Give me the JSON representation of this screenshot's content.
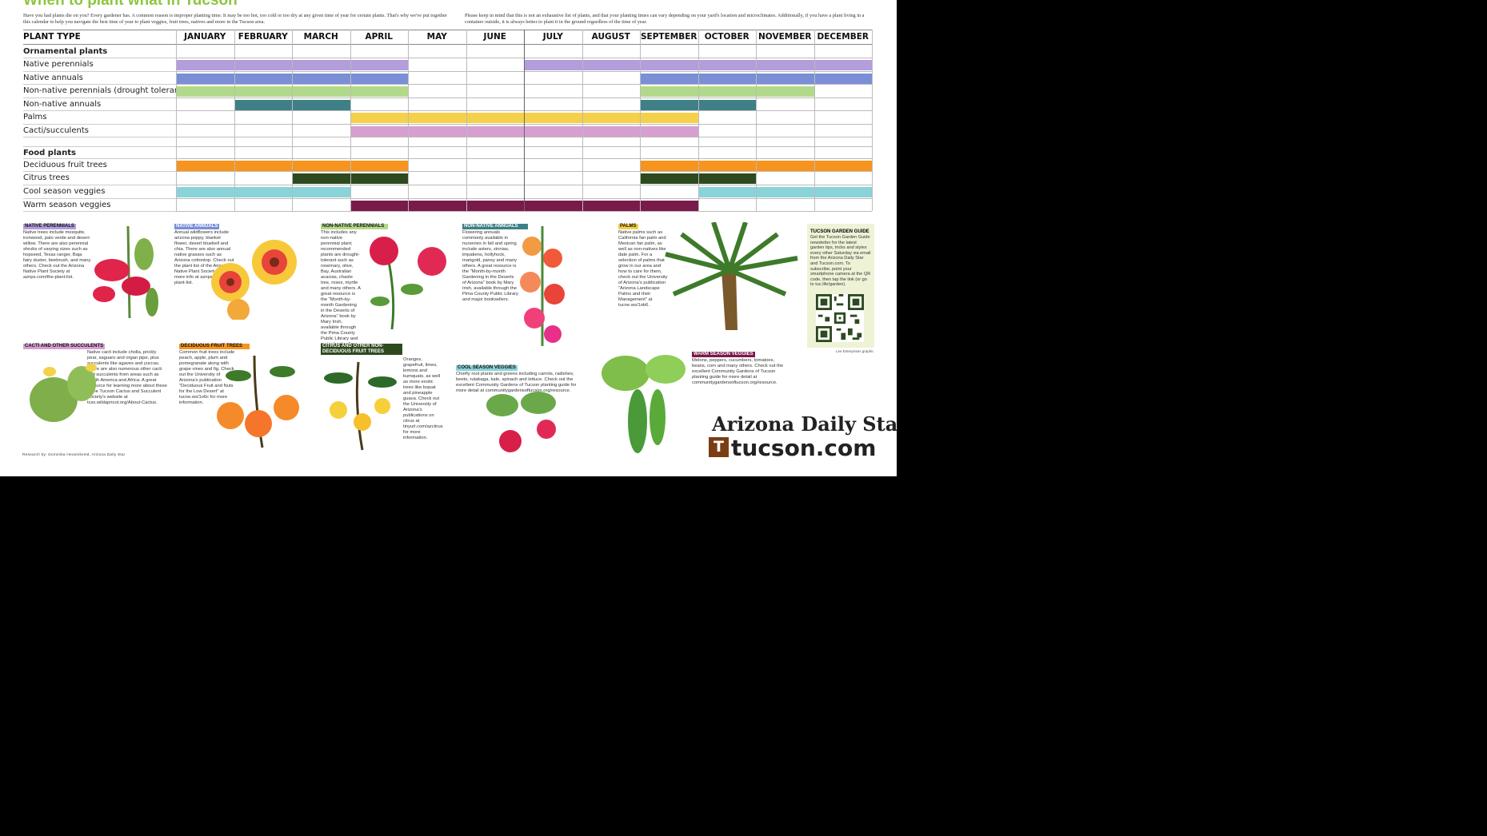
{
  "title": "When to plant what in Tucson",
  "intro_left": "Have you had plants die on you? Every gardener has. A common reason is improper planting time. It may be too hot, too cold or too dry at any given time of year for certain plants. That's why we've put together this calendar to help you navigate the best time of year to plant veggies, fruit trees, natives and more in the Tucson area.",
  "intro_right": "Please keep in mind that this is not an exhaustive list of plants, and that your planting times can vary depending on your yard's location and microclimates. Additionally, if you have a plant living in a container outside, it is always better to plant it in the ground regardless of the time of year.",
  "calendar": {
    "plant_type_header": "PLANT TYPE",
    "months": [
      "JANUARY",
      "FEBRUARY",
      "MARCH",
      "APRIL",
      "MAY",
      "JUNE",
      "JULY",
      "AUGUST",
      "SEPTEMBER",
      "OCTOBER",
      "NOVEMBER",
      "DECEMBER"
    ],
    "rows": [
      {
        "label": "Ornamental plants",
        "section": true,
        "periods": []
      },
      {
        "label": "Native perennials",
        "color": "#b39ddb",
        "periods": [
          [
            0,
            4
          ],
          [
            6,
            12
          ]
        ]
      },
      {
        "label": "Native annuals",
        "color": "#7b8fd6",
        "periods": [
          [
            0,
            4
          ],
          [
            8,
            12
          ]
        ]
      },
      {
        "label": "Non-native perennials (drought tolerant)",
        "color": "#b2d98a",
        "periods": [
          [
            0,
            4
          ],
          [
            8,
            11
          ]
        ]
      },
      {
        "label": "Non-native annuals",
        "color": "#3f7f86",
        "periods": [
          [
            1,
            3
          ],
          [
            8,
            10
          ]
        ]
      },
      {
        "label": "Palms",
        "color": "#f5d04a",
        "periods": [
          [
            3,
            9
          ]
        ]
      },
      {
        "label": "Cacti/succulents",
        "color": "#d69fcf",
        "periods": [
          [
            3,
            9
          ]
        ]
      },
      {
        "label": "",
        "spacer": true,
        "periods": []
      },
      {
        "label": "Food plants",
        "section": true,
        "periods": []
      },
      {
        "label": "Deciduous fruit trees",
        "color": "#f7941d",
        "periods": [
          [
            0,
            4
          ],
          [
            8,
            12
          ]
        ]
      },
      {
        "label": "Citrus trees",
        "color": "#2d4a1f",
        "periods": [
          [
            2,
            4
          ],
          [
            8,
            10
          ]
        ]
      },
      {
        "label": "Cool season veggies",
        "color": "#8ad3d8",
        "periods": [
          [
            0,
            3
          ],
          [
            9,
            12
          ]
        ]
      },
      {
        "label": "Warm season veggies",
        "color": "#7a1a4a",
        "periods": [
          [
            3,
            9
          ]
        ]
      }
    ]
  },
  "cards": {
    "native_perennials": {
      "tag": "NATIVE PERENNIALS",
      "color": "#b39ddb",
      "text": "Native trees include mesquite, ironwood, palo verde and desert willow. There are also perennial shrubs of varying sizes such as hopseed, Texas ranger, Baja fairy duster, beebrush, and many others. Check out the Arizona Native Plant Society at aznps.com/the-plant-list."
    },
    "native_annuals": {
      "tag": "NATIVE ANNUALS",
      "color": "#7b8fd6",
      "text": "Annual wildflowers include arizona poppy, blanket flower, desert bluebell and chia. There are also annual native grasses such as Arizona cottontop. Check out the plant list of the Arizona Native Plant Society for more info at aznps.com/the-plant-list."
    },
    "non_native_perennials": {
      "tag": "NON-NATIVE PERENNIALS",
      "color": "#b2d98a",
      "text": "This includes any non-native perennial plant; recommended plants are drought-tolerant such as rosemary, olive, Bay, Australian acacias, chaste tree, roses, myrtle and many others. A great resource is the \"Month-by-month Gardening in the Deserts of Arizona\" book by Mary Irish, available through the Pima County Public Library and major booksellers."
    },
    "non_native_annuals": {
      "tag": "NON-NATIVE ANNUALS",
      "color": "#3f7f86",
      "text": "Flowering annuals commonly available in nurseries in fall and spring include asters, zinnias, impatiens, hollyhock, marigold, pansy and many others. A great resource is the \"Month-by-month Gardening in the Deserts of Arizona\" book by Mary Irish, available through the Pima County Public Library and major booksellers."
    },
    "palms": {
      "tag": "PALMS",
      "color": "#f5d04a",
      "text": "Native palms such as California fan palm and Mexican fan palm, as well as non-natives like date palm. For a selection of palms that grow in our area and how to care for them, check out the University of Arizona's publication \"Arizona Landscape Palms and their Management\" at tucne.ws/1ob6."
    },
    "cacti": {
      "tag": "CACTI AND OTHER SUCCULENTS",
      "color": "#d69fcf",
      "text": "Native cacti include cholla, prickly pear, saguaro and organ pipe, plus succulents like agaves and yuccas. There are also numerous other cacti and succulents from areas such as South America and Africa. A great resource for learning more about these is the Tucson Cactus and Succulent Society's website at tcss.wildapricot.org/About-Cactus."
    },
    "deciduous": {
      "tag": "DECIDUOUS FRUIT TREES",
      "color": "#f7941d",
      "text": "Common fruit trees include peach, apple, plum and pomegranate along with grape vines and fig. Check out the University of Arizona's publication \"Deciduous Fruit and Nuts for the Low Desert\" at tucne.ws/1o6c for more information."
    },
    "citrus": {
      "tag": "CITRUS AND OTHER NON-DECIDUOUS FRUIT TREES",
      "color": "#2d4a1f",
      "text": "Oranges, grapefruit, limes, lemons and kumquats, as well as more exotic trees like loquat and pineapple guava. Check out the University of Arizona's publications on citrus at tinyurl.com/azcitrus for more information."
    },
    "cool": {
      "tag": "COOL SEASON VEGGIES",
      "color": "#8ad3d8",
      "text": "Chiefly root plants and greens including carrots, radishes, beets, rutabaga, kale, spinach and lettuce. Check out the excellent Community Gardens of Tucson planting guide for more detail at communitygardensoftucson.org/resource."
    },
    "warm": {
      "tag": "WARM SEASON VEGGIES",
      "color": "#7a1a4a",
      "text": "Melons, peppers, cucumbers, tomatoes, beans, corn and many others. Check out the excellent Community Gardens of Tucson planting guide for more detail at communitygardensoftucson.org/resource."
    }
  },
  "guide": {
    "title": "TUCSON GARDEN GUIDE",
    "text": "Get the Tucson Garden Guide newsletter for the latest garden tips, tricks and styles every other Saturday via email from the Arizona Daily Star and Tucson.com. To subscribe, point your smartphone camera at the QR code, then tap the link (or go to tuc.life/garden)."
  },
  "credit_graphic": "Lee Enterprises graphic",
  "research": "Research by: Dominika Heusinkveld, Arizona Daily Star",
  "brand": {
    "ads": "Arizona Daily Star",
    "logo_letter": "T",
    "site": "tucson.com"
  }
}
